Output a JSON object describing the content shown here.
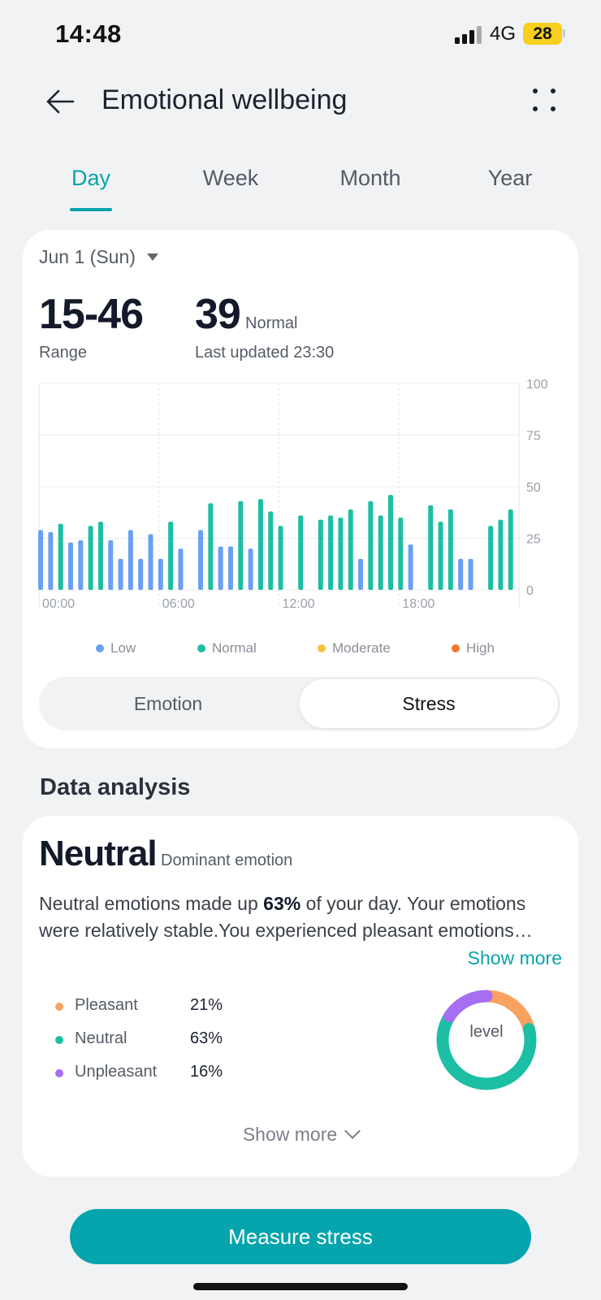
{
  "status_bar": {
    "time": "14:48",
    "network": "4G",
    "battery": "28"
  },
  "header": {
    "title": "Emotional wellbeing",
    "back_icon": "arrow-left-icon",
    "more_icon": "more-dots-icon"
  },
  "tabs": [
    {
      "label": "Day",
      "active": true
    },
    {
      "label": "Week",
      "active": false
    },
    {
      "label": "Month",
      "active": false
    },
    {
      "label": "Year",
      "active": false
    }
  ],
  "summary_card": {
    "date": "Jun 1 (Sun)",
    "range_value": "15-46",
    "range_label": "Range",
    "current_value": "39",
    "current_status": "Normal",
    "last_updated": "Last updated 23:30"
  },
  "chart_data": {
    "type": "bar",
    "ylim": [
      0,
      100
    ],
    "y_ticks": [
      "0",
      "25",
      "50",
      "75",
      "100"
    ],
    "x_ticks": [
      "00:00",
      "06:00",
      "12:00",
      "18:00"
    ],
    "colors": {
      "Low": "#6b9ff2",
      "Normal": "#1cbfa3",
      "Moderate": "#f5c242",
      "High": "#ef7a2a"
    },
    "legend": [
      "Low",
      "Normal",
      "Moderate",
      "High"
    ],
    "bars": [
      {
        "x": "00:05",
        "value": 29,
        "level": "Low"
      },
      {
        "x": "00:35",
        "value": 28,
        "level": "Low"
      },
      {
        "x": "01:05",
        "value": 32,
        "level": "Normal"
      },
      {
        "x": "01:35",
        "value": 23,
        "level": "Low"
      },
      {
        "x": "02:05",
        "value": 24,
        "level": "Low"
      },
      {
        "x": "02:35",
        "value": 31,
        "level": "Normal"
      },
      {
        "x": "03:05",
        "value": 33,
        "level": "Normal"
      },
      {
        "x": "03:35",
        "value": 24,
        "level": "Low"
      },
      {
        "x": "04:05",
        "value": 15,
        "level": "Low"
      },
      {
        "x": "04:35",
        "value": 29,
        "level": "Low"
      },
      {
        "x": "05:05",
        "value": 15,
        "level": "Low"
      },
      {
        "x": "05:35",
        "value": 27,
        "level": "Low"
      },
      {
        "x": "06:05",
        "value": 15,
        "level": "Low"
      },
      {
        "x": "06:35",
        "value": 33,
        "level": "Normal"
      },
      {
        "x": "07:05",
        "value": 20,
        "level": "Low"
      },
      {
        "x": "08:05",
        "value": 29,
        "level": "Low"
      },
      {
        "x": "08:35",
        "value": 42,
        "level": "Normal"
      },
      {
        "x": "09:05",
        "value": 21,
        "level": "Low"
      },
      {
        "x": "09:35",
        "value": 21,
        "level": "Low"
      },
      {
        "x": "10:05",
        "value": 43,
        "level": "Normal"
      },
      {
        "x": "10:35",
        "value": 20,
        "level": "Low"
      },
      {
        "x": "11:05",
        "value": 44,
        "level": "Normal"
      },
      {
        "x": "11:35",
        "value": 38,
        "level": "Normal"
      },
      {
        "x": "12:05",
        "value": 31,
        "level": "Normal"
      },
      {
        "x": "13:05",
        "value": 36,
        "level": "Normal"
      },
      {
        "x": "14:05",
        "value": 34,
        "level": "Normal"
      },
      {
        "x": "14:35",
        "value": 36,
        "level": "Normal"
      },
      {
        "x": "15:05",
        "value": 35,
        "level": "Normal"
      },
      {
        "x": "15:35",
        "value": 39,
        "level": "Normal"
      },
      {
        "x": "16:05",
        "value": 15,
        "level": "Low"
      },
      {
        "x": "16:35",
        "value": 43,
        "level": "Normal"
      },
      {
        "x": "17:05",
        "value": 36,
        "level": "Normal"
      },
      {
        "x": "17:35",
        "value": 46,
        "level": "Normal"
      },
      {
        "x": "18:05",
        "value": 35,
        "level": "Normal"
      },
      {
        "x": "18:35",
        "value": 22,
        "level": "Low"
      },
      {
        "x": "19:35",
        "value": 41,
        "level": "Normal"
      },
      {
        "x": "20:05",
        "value": 33,
        "level": "Normal"
      },
      {
        "x": "20:35",
        "value": 39,
        "level": "Normal"
      },
      {
        "x": "21:05",
        "value": 15,
        "level": "Low"
      },
      {
        "x": "21:35",
        "value": 15,
        "level": "Low"
      },
      {
        "x": "22:35",
        "value": 31,
        "level": "Normal"
      },
      {
        "x": "23:05",
        "value": 34,
        "level": "Normal"
      },
      {
        "x": "23:35",
        "value": 39,
        "level": "Normal"
      }
    ]
  },
  "toggle": {
    "options": [
      "Emotion",
      "Stress"
    ],
    "selected": "Stress"
  },
  "analysis": {
    "section_title": "Data analysis",
    "dominant": "Neutral",
    "dominant_label": "Dominant emotion",
    "summary_pre": "Neutral emotions made up ",
    "summary_pct": "63%",
    "summary_post": " of your day. Your emotions",
    "summary_line2": "were relatively stable.You experienced pleasant emotions…",
    "show_more": "Show more",
    "emotions": [
      {
        "label": "Pleasant",
        "pct": "21%",
        "value": 21,
        "color": "#f7a261"
      },
      {
        "label": "Neutral",
        "pct": "63%",
        "value": 63,
        "color": "#1cbfa3"
      },
      {
        "label": "Unpleasant",
        "pct": "16%",
        "value": 16,
        "color": "#a66ef2"
      }
    ],
    "donut_label": "level",
    "show_more_bottom": "Show more"
  },
  "measure_button": "Measure stress"
}
